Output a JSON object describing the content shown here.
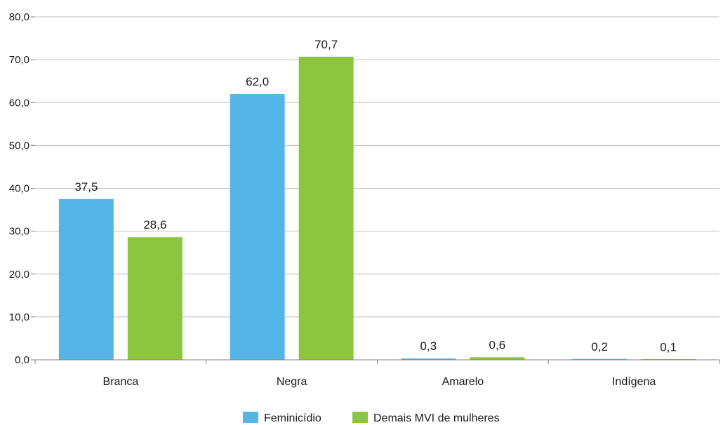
{
  "chart_data": {
    "type": "bar",
    "categories": [
      "Branca",
      "Negra",
      "Amarelo",
      "Indígena"
    ],
    "series": [
      {
        "name": "Feminicídio",
        "values": [
          37.5,
          62.0,
          0.3,
          0.2
        ],
        "labels": [
          "37,5",
          "62,0",
          "0,3",
          "0,2"
        ],
        "color": "#55b6e6"
      },
      {
        "name": "Demais MVI de mulheres",
        "values": [
          28.6,
          70.7,
          0.6,
          0.1
        ],
        "labels": [
          "28,6",
          "70,7",
          "0,6",
          "0,1"
        ],
        "color": "#8cc63f"
      }
    ],
    "ylim": [
      0,
      80
    ],
    "yticks": [
      0,
      10,
      20,
      30,
      40,
      50,
      60,
      70,
      80
    ],
    "ytick_labels": [
      "0,0",
      "10,0",
      "20,0",
      "30,0",
      "40,0",
      "50,0",
      "60,0",
      "70,0",
      "80,0"
    ],
    "grid": true,
    "legend_position": "bottom-center",
    "gridline_color": "#bfbfbf"
  }
}
